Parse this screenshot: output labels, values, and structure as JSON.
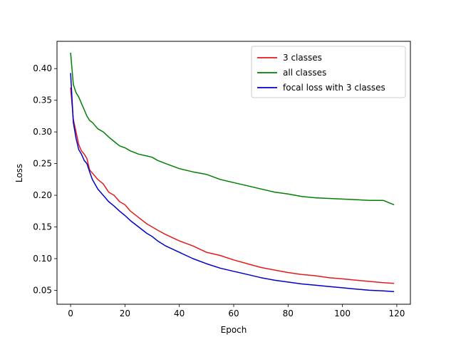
{
  "chart_data": {
    "type": "line",
    "title": "",
    "xlabel": "Epoch",
    "ylabel": "Loss",
    "xlim": [
      -5,
      125
    ],
    "ylim": [
      0.028,
      0.443
    ],
    "xticks": [
      0,
      20,
      40,
      60,
      80,
      100,
      120
    ],
    "xtick_labels": [
      "0",
      "20",
      "40",
      "60",
      "80",
      "100",
      "120"
    ],
    "yticks": [
      0.05,
      0.1,
      0.15,
      0.2,
      0.25,
      0.3,
      0.35,
      0.4
    ],
    "ytick_labels": [
      "0.05",
      "0.10",
      "0.15",
      "0.20",
      "0.25",
      "0.30",
      "0.35",
      "0.40"
    ],
    "grid": false,
    "legend": "top-right",
    "series": [
      {
        "name": "3 classes",
        "color": "#e31a1c",
        "x": [
          0,
          1,
          2,
          3,
          4,
          5,
          6,
          7,
          8,
          10,
          12,
          14,
          16,
          18,
          20,
          22,
          25,
          28,
          30,
          32,
          35,
          40,
          45,
          50,
          55,
          60,
          65,
          70,
          75,
          80,
          85,
          90,
          95,
          100,
          105,
          110,
          115,
          119
        ],
        "y": [
          0.37,
          0.32,
          0.3,
          0.28,
          0.27,
          0.265,
          0.258,
          0.24,
          0.235,
          0.225,
          0.218,
          0.205,
          0.2,
          0.19,
          0.185,
          0.175,
          0.165,
          0.155,
          0.15,
          0.145,
          0.138,
          0.128,
          0.12,
          0.11,
          0.105,
          0.098,
          0.092,
          0.086,
          0.082,
          0.078,
          0.075,
          0.073,
          0.07,
          0.068,
          0.066,
          0.064,
          0.062,
          0.061
        ]
      },
      {
        "name": "all classes",
        "color": "#008000",
        "x": [
          0,
          1,
          2,
          3,
          4,
          5,
          6,
          7,
          8,
          10,
          12,
          14,
          16,
          18,
          20,
          22,
          25,
          28,
          30,
          32,
          35,
          40,
          45,
          50,
          55,
          60,
          65,
          70,
          75,
          80,
          85,
          90,
          95,
          100,
          105,
          110,
          115,
          119
        ],
        "y": [
          0.425,
          0.375,
          0.362,
          0.355,
          0.345,
          0.335,
          0.325,
          0.318,
          0.315,
          0.305,
          0.3,
          0.292,
          0.285,
          0.278,
          0.275,
          0.27,
          0.265,
          0.262,
          0.26,
          0.255,
          0.25,
          0.242,
          0.237,
          0.233,
          0.225,
          0.22,
          0.215,
          0.21,
          0.205,
          0.202,
          0.198,
          0.196,
          0.195,
          0.194,
          0.193,
          0.192,
          0.192,
          0.185
        ]
      },
      {
        "name": "focal loss with 3 classes",
        "color": "#0000cc",
        "x": [
          0,
          1,
          2,
          3,
          4,
          5,
          6,
          7,
          8,
          10,
          12,
          14,
          16,
          18,
          20,
          22,
          25,
          28,
          30,
          32,
          35,
          40,
          45,
          50,
          55,
          60,
          65,
          70,
          75,
          80,
          85,
          90,
          95,
          100,
          105,
          110,
          115,
          119
        ],
        "y": [
          0.393,
          0.315,
          0.29,
          0.272,
          0.265,
          0.255,
          0.25,
          0.237,
          0.225,
          0.21,
          0.2,
          0.19,
          0.183,
          0.175,
          0.168,
          0.16,
          0.15,
          0.14,
          0.135,
          0.128,
          0.12,
          0.11,
          0.1,
          0.092,
          0.085,
          0.08,
          0.075,
          0.07,
          0.066,
          0.063,
          0.06,
          0.058,
          0.056,
          0.054,
          0.052,
          0.05,
          0.049,
          0.048
        ]
      }
    ]
  }
}
